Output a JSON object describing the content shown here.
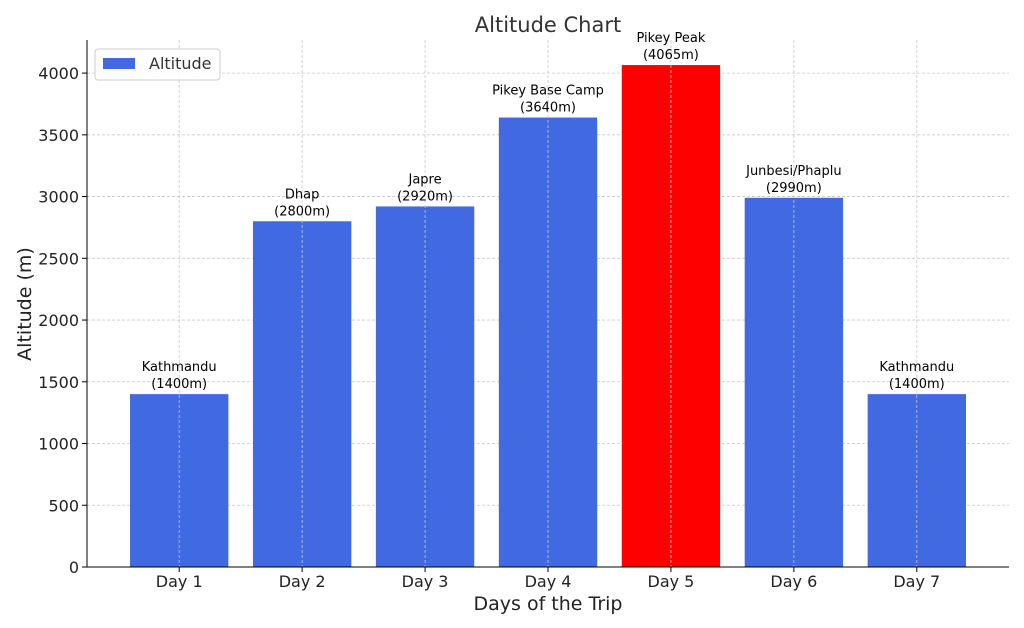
{
  "chart_data": {
    "type": "bar",
    "title": "Altitude Chart",
    "xlabel": "Days of the Trip",
    "ylabel": "Altitude (m)",
    "categories": [
      "Day 1",
      "Day 2",
      "Day 3",
      "Day 4",
      "Day 5",
      "Day 6",
      "Day 7"
    ],
    "series": [
      {
        "name": "Altitude",
        "values": [
          1400,
          2800,
          2920,
          3640,
          4065,
          2990,
          1400
        ]
      }
    ],
    "bar_labels": [
      [
        "Kathmandu",
        "(1400m)"
      ],
      [
        "Dhap",
        "(2800m)"
      ],
      [
        "Japre",
        "(2920m)"
      ],
      [
        "Pikey Base Camp",
        "(3640m)"
      ],
      [
        "Pikey Peak",
        "(4065m)"
      ],
      [
        "Junbesi/Phaplu",
        "(2990m)"
      ],
      [
        "Kathmandu",
        "(1400m)"
      ]
    ],
    "bar_colors": [
      "#4169E1",
      "#4169E1",
      "#4169E1",
      "#4169E1",
      "#FF0000",
      "#4169E1",
      "#4169E1"
    ],
    "yticks": [
      0,
      500,
      1000,
      1500,
      2000,
      2500,
      3000,
      3500,
      4000
    ],
    "ylim": [
      0,
      4268
    ],
    "grid": true,
    "legend": {
      "position": "top-left",
      "label": "Altitude",
      "color": "#4169E1"
    }
  }
}
